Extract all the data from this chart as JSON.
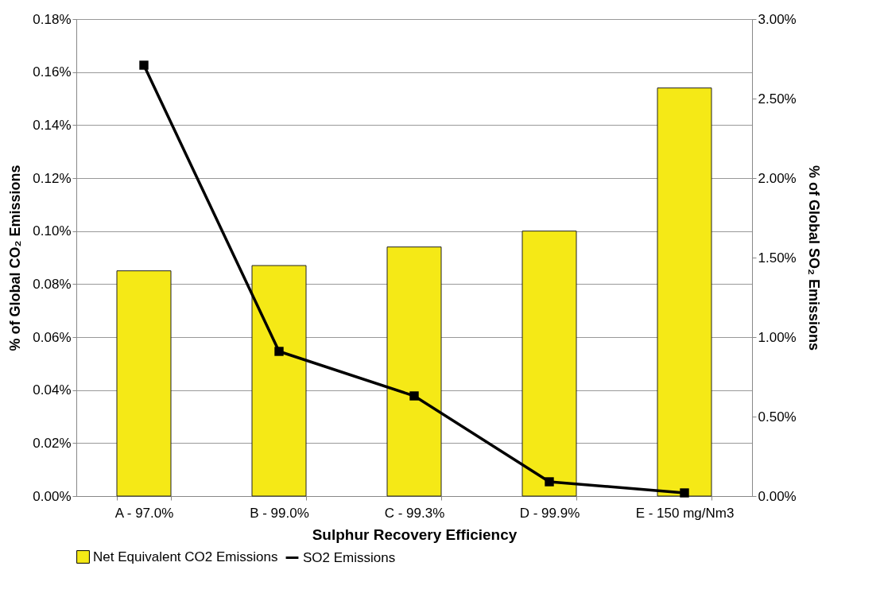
{
  "chart_data": {
    "type": "bar",
    "xlabel": "Sulphur  Recovery Efficiency",
    "ylabel": "% of Global  CO₂ Emissions",
    "y2label": "% of Global  SO₂ Emissions",
    "categories": [
      "A - 97.0%",
      "B - 99.0%",
      "C - 99.3%",
      "D - 99.9%",
      "E - 150 mg/Nm3"
    ],
    "series": [
      {
        "name": "Net Equivalent CO2 Emissions",
        "color": "#f5e916",
        "values": [
          0.085,
          0.087,
          0.094,
          0.1,
          0.154
        ]
      },
      {
        "name": "SO2 Emissions",
        "type": "line",
        "axis": "y2",
        "color": "#000000",
        "marker": "square",
        "line_style": "solid",
        "values": [
          2.71,
          0.91,
          0.63,
          0.09,
          0.02
        ]
      }
    ],
    "ylim": [
      0,
      0.18
    ],
    "yticks": [
      {
        "value": 0,
        "label": "0.00%"
      },
      {
        "value": 0.02,
        "label": "0.02%"
      },
      {
        "value": 0.04,
        "label": "0.04%"
      },
      {
        "value": 0.06,
        "label": "0.06%"
      },
      {
        "value": 0.08,
        "label": "0.08%"
      },
      {
        "value": 0.1,
        "label": "0.10%"
      },
      {
        "value": 0.12,
        "label": "0.12%"
      },
      {
        "value": 0.14,
        "label": "0.14%"
      },
      {
        "value": 0.16,
        "label": "0.16%"
      },
      {
        "value": 0.18,
        "label": "0.18%"
      }
    ],
    "y2lim": [
      0,
      3
    ],
    "y2ticks": [
      {
        "value": 0,
        "label": "0.00%"
      },
      {
        "value": 0.5,
        "label": "0.50%"
      },
      {
        "value": 1,
        "label": "1.00%"
      },
      {
        "value": 1.5,
        "label": "1.50%"
      },
      {
        "value": 2,
        "label": "2.00%"
      },
      {
        "value": 2.5,
        "label": "2.50%"
      },
      {
        "value": 3,
        "label": "3.00%"
      }
    ],
    "grid": "y",
    "legend": "bottom"
  }
}
